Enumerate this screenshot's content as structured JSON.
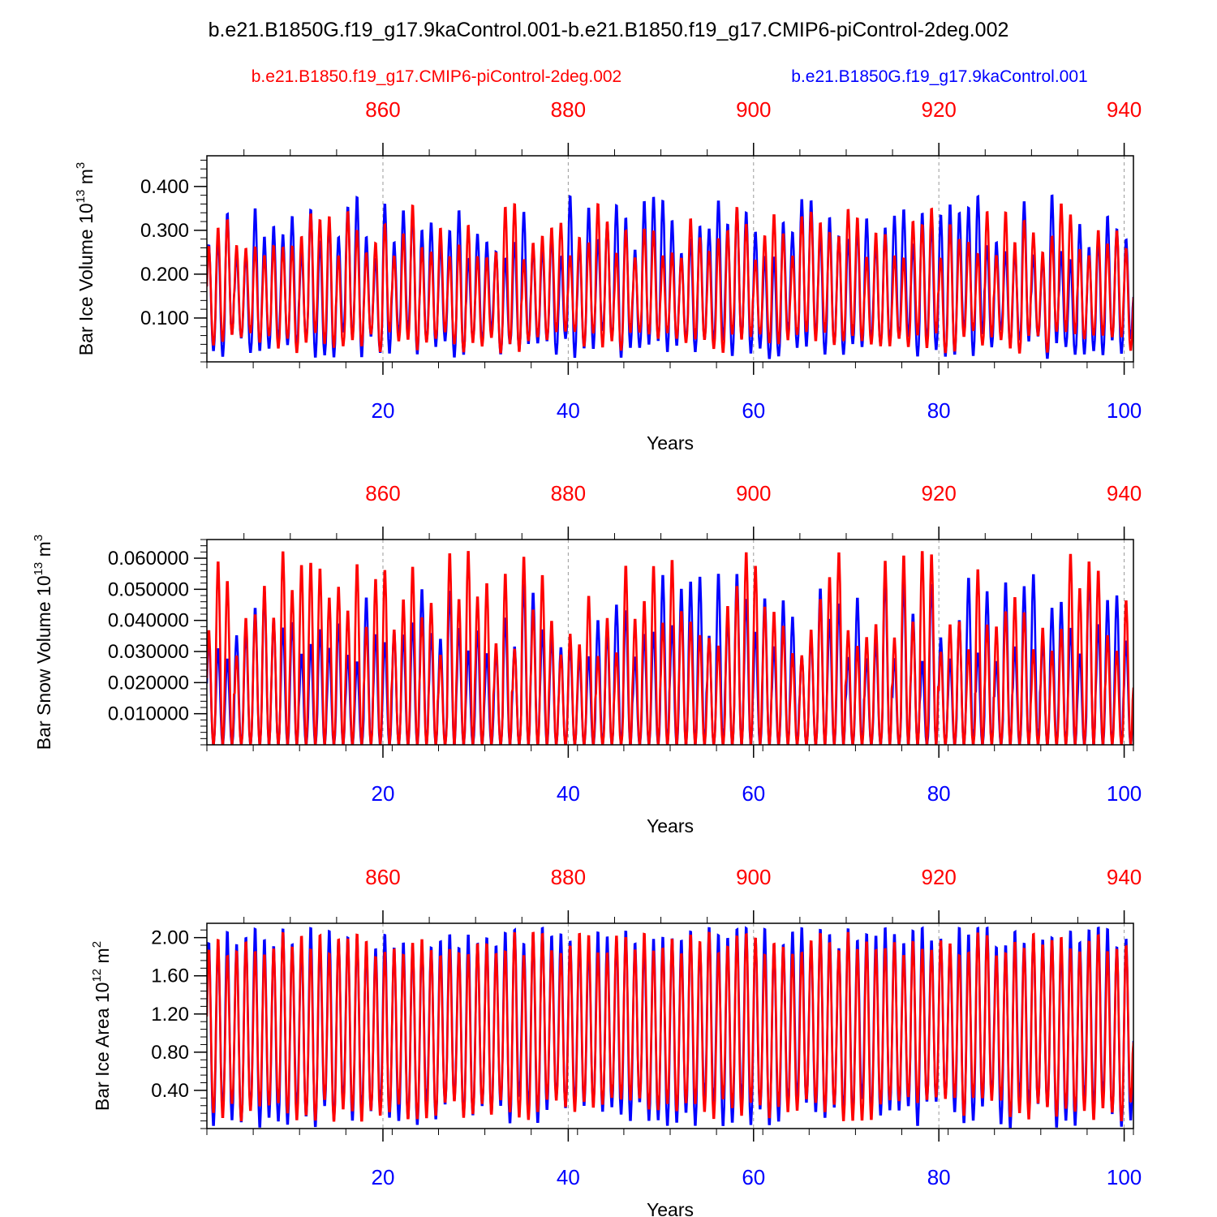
{
  "title": "b.e21.B1850G.f19_g17.9kaControl.001-b.e21.B1850.f19_g17.CMIP6-piControl-2deg.002",
  "legend": {
    "red_case": "b.e21.B1850.f19_g17.CMIP6-piControl-2deg.002",
    "blue_case": "b.e21.B1850G.f19_g17.9kaControl.001"
  },
  "colors": {
    "red": "#ff0000",
    "blue": "#0000ff",
    "axis": "#000000",
    "grid": "#999999"
  },
  "chart_data": [
    {
      "type": "line",
      "ylabel_main": "Bar Ice Volume 10",
      "ylabel_exp": "13",
      "ylabel_unit": " m",
      "ylabel_unit_exp": "3",
      "xlabel": "Years",
      "xlim": [
        1,
        101
      ],
      "ylim": [
        0.0,
        0.47
      ],
      "yticks": [
        0.1,
        0.2,
        0.3,
        0.4
      ],
      "ytick_labels": [
        "0.100",
        "0.200",
        "0.300",
        "0.400"
      ],
      "yminor": 0.02,
      "bottom_xticks": [
        20,
        40,
        60,
        80,
        100
      ],
      "top_xticks": [
        860,
        880,
        900,
        920,
        940
      ],
      "top_offset": 841,
      "series": [
        {
          "name": "b.e21.B1850G.f19_g17.9kaControl.001",
          "color": "blue",
          "min_mean": 0.04,
          "max_mean": 0.31,
          "min_spread": 0.015,
          "max_spread": 0.035,
          "seed": 11
        },
        {
          "name": "b.e21.B1850.f19_g17.CMIP6-piControl-2deg.002",
          "color": "red",
          "min_mean": 0.045,
          "max_mean": 0.3,
          "min_spread": 0.012,
          "max_spread": 0.03,
          "seed": 23
        }
      ]
    },
    {
      "type": "line",
      "ylabel_main": "Bar Snow Volume 10",
      "ylabel_exp": "13",
      "ylabel_unit": " m",
      "ylabel_unit_exp": "3",
      "xlabel": "Years",
      "xlim": [
        1,
        101
      ],
      "ylim": [
        0.0,
        0.066
      ],
      "yticks": [
        0.01,
        0.02,
        0.03,
        0.04,
        0.05,
        0.06
      ],
      "ytick_labels": [
        "0.010000",
        "0.020000",
        "0.030000",
        "0.040000",
        "0.050000",
        "0.060000"
      ],
      "yminor": 0.002,
      "bottom_xticks": [
        20,
        40,
        60,
        80,
        100
      ],
      "top_xticks": [
        860,
        880,
        900,
        920,
        940
      ],
      "top_offset": 841,
      "series": [
        {
          "name": "b.e21.B1850G.f19_g17.9kaControl.001",
          "color": "blue",
          "min_mean": 0.0,
          "max_mean": 0.042,
          "min_spread": 0.0,
          "max_spread": 0.007,
          "seed": 37
        },
        {
          "name": "b.e21.B1850.f19_g17.CMIP6-piControl-2deg.002",
          "color": "red",
          "min_mean": 0.0,
          "max_mean": 0.046,
          "min_spread": 0.0,
          "max_spread": 0.008,
          "seed": 41
        }
      ]
    },
    {
      "type": "line",
      "ylabel_main": "Bar Ice Area 10",
      "ylabel_exp": "12",
      "ylabel_unit": " m",
      "ylabel_unit_exp": "2",
      "xlabel": "Years",
      "xlim": [
        1,
        101
      ],
      "ylim": [
        0.0,
        2.15
      ],
      "yticks": [
        0.4,
        0.8,
        1.2,
        1.6,
        2.0
      ],
      "ytick_labels": [
        "0.40",
        "0.80",
        "1.20",
        "1.60",
        "2.00"
      ],
      "yminor": 0.08,
      "bottom_xticks": [
        20,
        40,
        60,
        80,
        100
      ],
      "top_xticks": [
        860,
        880,
        900,
        920,
        940
      ],
      "top_offset": 841,
      "series": [
        {
          "name": "b.e21.B1850G.f19_g17.9kaControl.001",
          "color": "blue",
          "min_mean": 0.17,
          "max_mean": 2.04,
          "min_spread": 0.08,
          "max_spread": 0.06,
          "seed": 53
        },
        {
          "name": "b.e21.B1850.f19_g17.CMIP6-piControl-2deg.002",
          "color": "red",
          "min_mean": 0.2,
          "max_mean": 1.96,
          "min_spread": 0.06,
          "max_spread": 0.06,
          "seed": 67
        }
      ]
    }
  ]
}
